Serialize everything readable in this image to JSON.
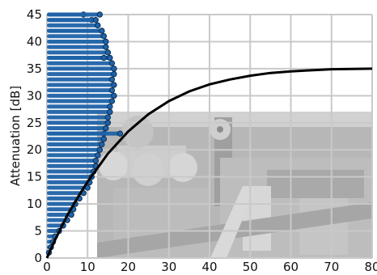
{
  "chart_data": {
    "type": "scatter",
    "title": "",
    "xlabel": "",
    "ylabel": "Attenuation [dB]",
    "xlim": [
      0,
      80
    ],
    "ylim": [
      0,
      45
    ],
    "x_ticks": [
      0,
      10,
      20,
      30,
      40,
      50,
      60,
      70,
      80
    ],
    "y_ticks": [
      0,
      5,
      10,
      15,
      20,
      25,
      30,
      35,
      40,
      45
    ],
    "x_tick_labels": [
      "0",
      "10",
      "20",
      "30",
      "40",
      "50",
      "60",
      "70",
      "80"
    ],
    "y_tick_labels": [
      "0",
      "5",
      "10",
      "15",
      "20",
      "25",
      "30",
      "35",
      "40",
      "45"
    ],
    "grid": true,
    "background_image": "aerial-city-photo",
    "series": [
      {
        "kind": "scatter",
        "color": "#1f63a8",
        "edge_color": "#0b2f57",
        "points": [
          [
            0.5,
            1
          ],
          [
            1,
            2
          ],
          [
            1.5,
            3
          ],
          [
            2,
            4
          ],
          [
            3,
            5
          ],
          [
            4,
            6
          ],
          [
            5,
            7
          ],
          [
            6,
            8
          ],
          [
            6.5,
            9
          ],
          [
            7,
            10
          ],
          [
            8,
            11
          ],
          [
            9,
            12
          ],
          [
            10,
            13
          ],
          [
            10.5,
            14
          ],
          [
            11,
            15
          ],
          [
            11.5,
            16
          ],
          [
            12,
            17
          ],
          [
            12,
            18
          ],
          [
            12.5,
            19
          ],
          [
            13,
            20
          ],
          [
            13.5,
            21
          ],
          [
            14,
            22
          ],
          [
            14,
            23
          ],
          [
            14.5,
            24
          ],
          [
            15,
            25
          ],
          [
            15,
            26
          ],
          [
            15.5,
            27
          ],
          [
            15.5,
            28
          ],
          [
            16,
            29
          ],
          [
            16.5,
            30
          ],
          [
            16,
            31
          ],
          [
            16.5,
            32
          ],
          [
            16,
            33
          ],
          [
            16.5,
            34
          ],
          [
            16.5,
            35
          ],
          [
            16,
            36
          ],
          [
            15.5,
            37
          ],
          [
            15,
            38
          ],
          [
            14.5,
            39
          ],
          [
            14.5,
            40
          ],
          [
            14,
            41
          ],
          [
            13.5,
            42
          ],
          [
            12.5,
            43
          ],
          [
            11,
            44
          ],
          [
            9,
            45
          ],
          [
            18,
            23
          ],
          [
            13.5,
            42
          ],
          [
            14,
            37
          ],
          [
            13,
            45
          ],
          [
            12,
            44
          ]
        ]
      },
      {
        "kind": "line",
        "color": "#000000",
        "points": [
          [
            0,
            0
          ],
          [
            2,
            3.3
          ],
          [
            5,
            7.9
          ],
          [
            8,
            11.7
          ],
          [
            10,
            14.1
          ],
          [
            15,
            19.3
          ],
          [
            20,
            23.4
          ],
          [
            25,
            26.6
          ],
          [
            30,
            29
          ],
          [
            35,
            30.8
          ],
          [
            40,
            32.1
          ],
          [
            45,
            33
          ],
          [
            50,
            33.7
          ],
          [
            55,
            34.2
          ],
          [
            60,
            34.5
          ],
          [
            65,
            34.7
          ],
          [
            70,
            34.9
          ],
          [
            80,
            35
          ]
        ]
      }
    ]
  }
}
